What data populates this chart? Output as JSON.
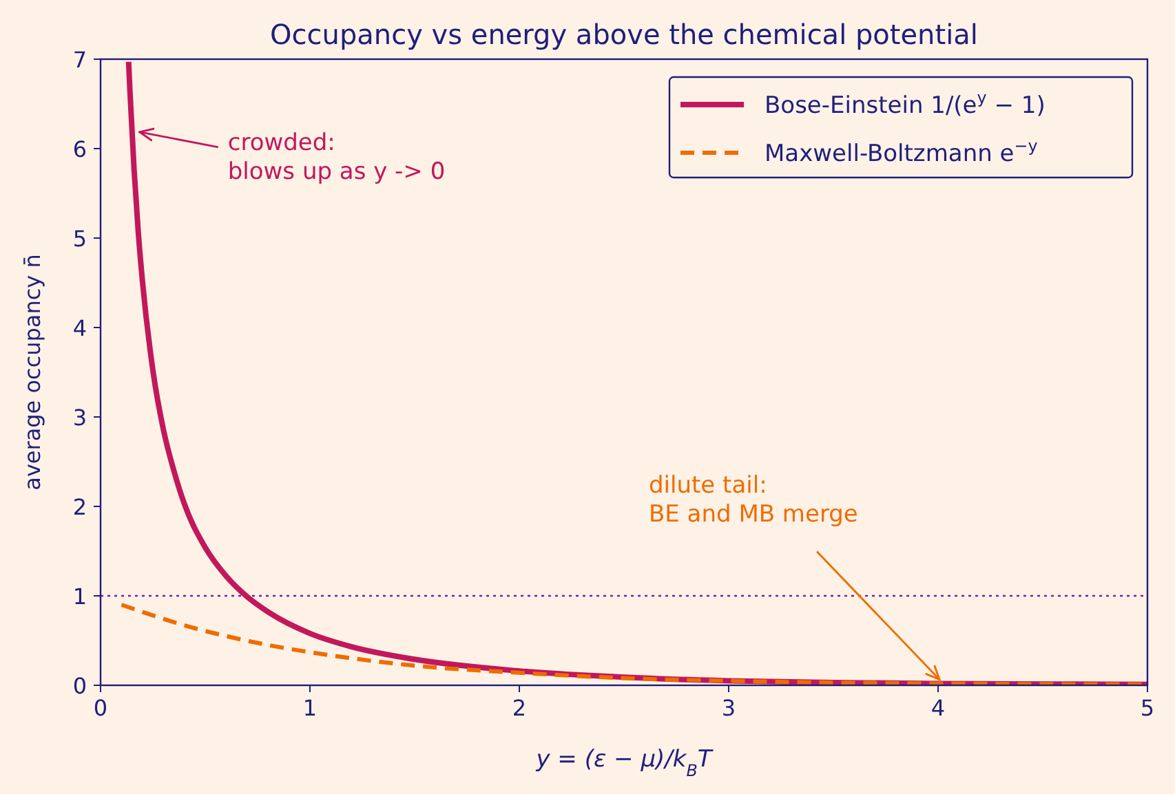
{
  "chart_data": {
    "type": "line",
    "title": "Occupancy vs energy above the chemical potential",
    "xlabel": "y = (ε − μ)/k$_{B}$T",
    "ylabel": "average occupancy  n̄",
    "xlim": [
      0,
      5
    ],
    "ylim": [
      0,
      7
    ],
    "xticks": [
      0,
      1,
      2,
      3,
      4,
      5
    ],
    "yticks": [
      0,
      1,
      2,
      3,
      4,
      5,
      6,
      7
    ],
    "grid": false,
    "legend": "top right",
    "marker": "none",
    "series": [
      {
        "name": "Bose-Einstein  1/(e$^{y}$ − 1)",
        "color": "#c2185b",
        "line_style": "solid",
        "x": [
          0.134,
          0.14,
          0.16,
          0.18,
          0.2,
          0.25,
          0.3,
          0.35,
          0.4,
          0.5,
          0.6,
          0.7,
          0.8,
          1.0,
          1.2,
          1.5,
          2.0,
          2.5,
          3.0,
          3.5,
          4.0,
          5.0
        ],
        "values": [
          6.97,
          6.66,
          5.77,
          5.07,
          4.52,
          3.52,
          2.86,
          2.4,
          2.03,
          1.54,
          1.22,
          0.99,
          0.82,
          0.58,
          0.43,
          0.29,
          0.16,
          0.09,
          0.05,
          0.03,
          0.02,
          0.01
        ]
      },
      {
        "name": "Maxwell-Boltzmann  e$^{−y}$",
        "color": "#ef6c00",
        "line_style": "dashed",
        "x": [
          0.1,
          0.2,
          0.4,
          0.6,
          0.8,
          1.0,
          1.5,
          2.0,
          2.5,
          3.0,
          3.5,
          4.0,
          5.0
        ],
        "values": [
          0.9,
          0.82,
          0.67,
          0.55,
          0.45,
          0.37,
          0.22,
          0.14,
          0.08,
          0.05,
          0.03,
          0.02,
          0.01
        ]
      }
    ],
    "ref_lines": [
      {
        "axis": "y",
        "value": 1,
        "color": "#7b1fa2",
        "line_style": "dotted"
      }
    ],
    "annotations": [
      {
        "text": "crowded:\nblows up as y -> 0",
        "x": 0.18,
        "y": 6.17
      },
      {
        "text": "dilute tail:\nBE and MB merge",
        "x": 4,
        "y": 0.05
      }
    ]
  }
}
